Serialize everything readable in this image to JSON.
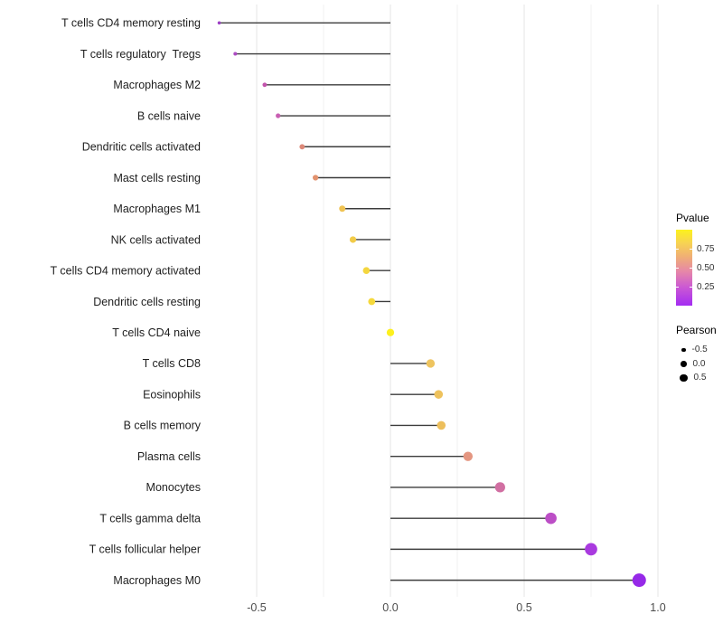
{
  "chart_data": {
    "type": "lollipop",
    "orientation": "horizontal",
    "title": "",
    "xlabel": "",
    "ylabel": "",
    "xlim": [
      -0.72,
      1.01
    ],
    "x_ticks": [
      -0.5,
      0.0,
      0.5,
      1.0
    ],
    "x_tick_labels": [
      "-0.5",
      "0.0",
      "0.5",
      "1.0"
    ],
    "x_gridlines_major": [
      -0.5,
      0.0,
      0.5,
      1.0
    ],
    "x_gridlines_minor": [
      -0.25,
      0.25,
      0.75
    ],
    "stem_base": 0.0,
    "grid": "vertical gridlines every 0.25, light gray, no axis lines",
    "legend_position": "right",
    "color_encodes": "Pvalue",
    "size_encodes": "Pearson",
    "points": [
      {
        "label": "T cells CD4 memory resting",
        "pearson": -0.64,
        "pvalue_est": 0.1,
        "color": "#9C40C4"
      },
      {
        "label": "T cells regulatory  Tregs",
        "pearson": -0.58,
        "pvalue_est": 0.14,
        "color": "#AC4BC2"
      },
      {
        "label": "Macrophages M2",
        "pearson": -0.47,
        "pvalue_est": 0.28,
        "color": "#C254AC"
      },
      {
        "label": "B cells naive",
        "pearson": -0.42,
        "pvalue_est": 0.32,
        "color": "#C85FB2"
      },
      {
        "label": "Dendritic cells activated",
        "pearson": -0.33,
        "pvalue_est": 0.55,
        "color": "#DC8878"
      },
      {
        "label": "Mast cells resting",
        "pearson": -0.28,
        "pvalue_est": 0.6,
        "color": "#E2926E"
      },
      {
        "label": "Macrophages M1",
        "pearson": -0.18,
        "pvalue_est": 0.77,
        "color": "#F0C353"
      },
      {
        "label": "NK cells activated",
        "pearson": -0.14,
        "pvalue_est": 0.8,
        "color": "#F2CB48"
      },
      {
        "label": "T cells CD4 memory activated",
        "pearson": -0.09,
        "pvalue_est": 0.85,
        "color": "#F4D63E"
      },
      {
        "label": "Dendritic cells resting",
        "pearson": -0.07,
        "pvalue_est": 0.86,
        "color": "#F5D93C"
      },
      {
        "label": "T cells CD4 naive",
        "pearson": 0.0,
        "pvalue_est": 0.97,
        "color": "#FDF01E"
      },
      {
        "label": "T cells CD8",
        "pearson": 0.15,
        "pvalue_est": 0.78,
        "color": "#EEC45F"
      },
      {
        "label": "Eosinophils",
        "pearson": 0.18,
        "pvalue_est": 0.77,
        "color": "#EEC25D"
      },
      {
        "label": "B cells memory",
        "pearson": 0.19,
        "pvalue_est": 0.76,
        "color": "#EDBF5C"
      },
      {
        "label": "Plasma cells",
        "pearson": 0.29,
        "pvalue_est": 0.6,
        "color": "#E49681"
      },
      {
        "label": "Monocytes",
        "pearson": 0.41,
        "pvalue_est": 0.42,
        "color": "#D16FA2"
      },
      {
        "label": "T cells gamma delta",
        "pearson": 0.6,
        "pvalue_est": 0.22,
        "color": "#BC4EC6"
      },
      {
        "label": "T cells follicular helper",
        "pearson": 0.75,
        "pvalue_est": 0.12,
        "color": "#A93ADF"
      },
      {
        "label": "Macrophages M0",
        "pearson": 0.93,
        "pvalue_est": 0.04,
        "color": "#9629E8"
      }
    ]
  },
  "legend": {
    "pvalue": {
      "title": "Pvalue",
      "range": [
        0,
        1
      ],
      "gradient_top_color": "#FCF21D",
      "gradient_bottom_color": "#A32CF2",
      "ticks": [
        {
          "label": "0.75",
          "value": 0.75
        },
        {
          "label": "0.50",
          "value": 0.5
        },
        {
          "label": "0.25",
          "value": 0.25
        }
      ]
    },
    "pearson": {
      "title": "Pearson",
      "dot_color": "#000000",
      "items": [
        {
          "label": "-0.5",
          "value": -0.5
        },
        {
          "label": "0.0",
          "value": 0.0
        },
        {
          "label": "0.5",
          "value": 0.5
        }
      ]
    }
  },
  "style": {
    "background": "#FFFFFF",
    "stem_color": "#3C3C3C",
    "gridline_major_color": "#E4E4E4",
    "gridline_minor_color": "#F1F1F1",
    "y_label_color": "#1F1F1F",
    "x_label_color": "#4D4D4D"
  }
}
